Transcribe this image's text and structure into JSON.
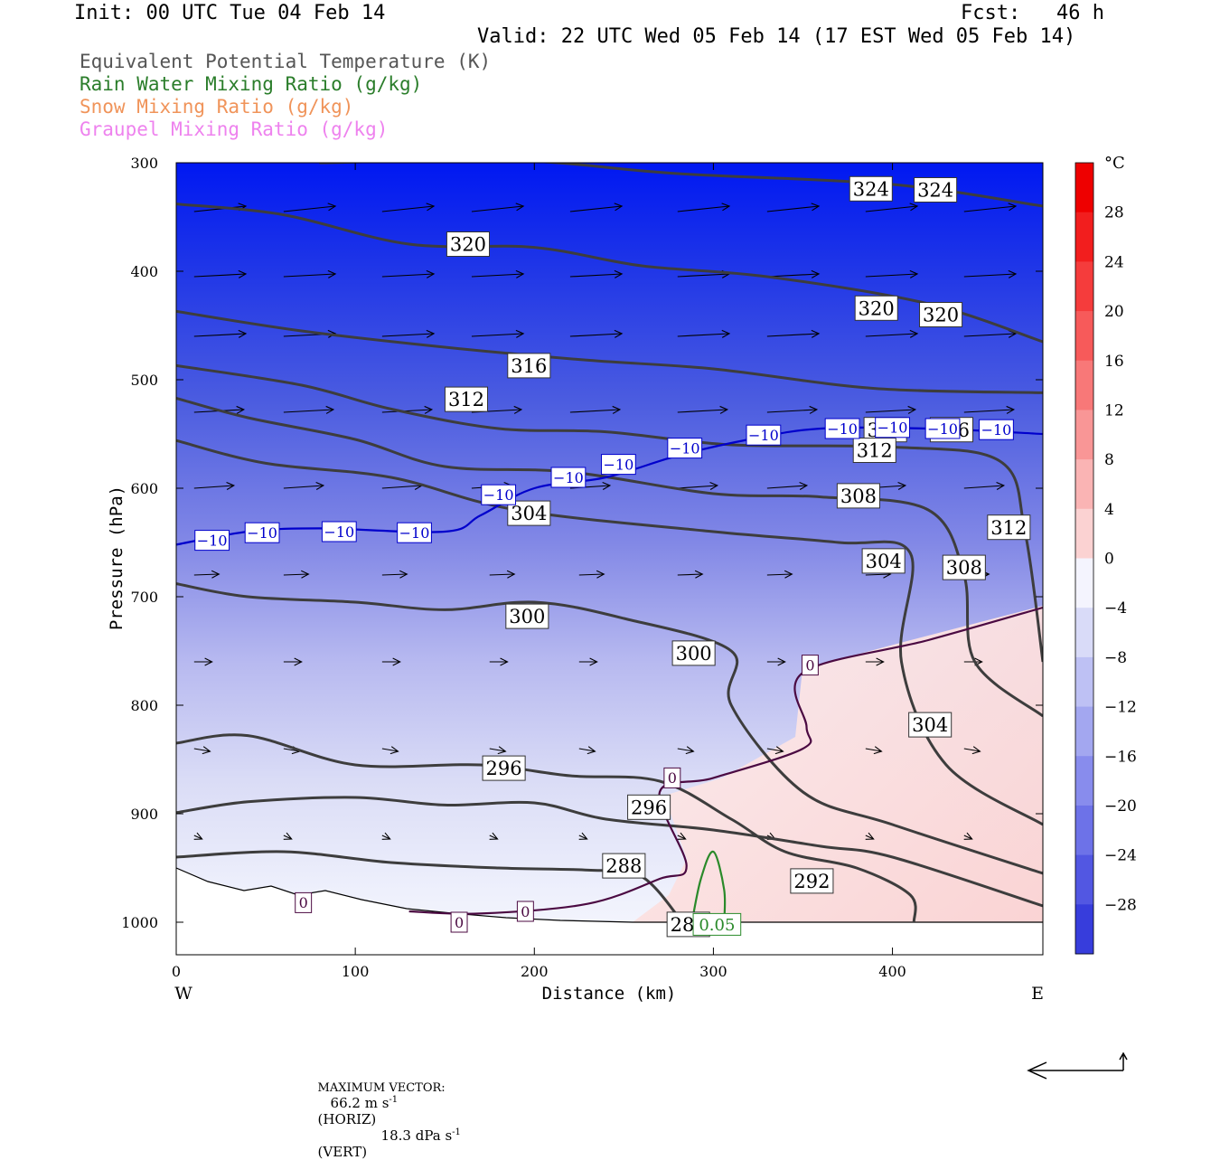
{
  "header": {
    "init": "Init: 00 UTC Tue 04 Feb 14",
    "fcst": "Fcst:   46 h",
    "valid": "Valid: 22 UTC Wed 05 Feb 14 (17 EST Wed 05 Feb 14)"
  },
  "fields": [
    {
      "label": "Equivalent Potential Temperature (K)",
      "color": "#555555"
    },
    {
      "label": "Rain Water Mixing Ratio (g/kg)",
      "color": "#2a7d2a"
    },
    {
      "label": "Snow Mixing Ratio (g/kg)",
      "color": "#f0945a"
    },
    {
      "label": "Graupel Mixing Ratio (g/kg)",
      "color": "#ee82ee"
    }
  ],
  "chart_data": {
    "type": "contour",
    "xlabel": "Distance (km)",
    "ylabel": "Pressure (hPa)",
    "xlim": [
      0,
      484
    ],
    "ylim": [
      1030,
      300
    ],
    "x_ticks": [
      0,
      100,
      200,
      300,
      400
    ],
    "y_ticks": [
      300,
      400,
      500,
      600,
      700,
      800,
      900,
      1000
    ],
    "west_label": "W",
    "east_label": "E",
    "colorbar": {
      "unit": "°C",
      "labels": [
        "28",
        "24",
        "20",
        "16",
        "12",
        "8",
        "4",
        "0",
        "−4",
        "−8",
        "−12",
        "−16",
        "−20",
        "−24",
        "−28"
      ]
    },
    "theta_e_contours": [
      {
        "level": 324,
        "label": "324",
        "points": [
          [
            80,
            300
          ],
          [
            190,
            298
          ],
          [
            280,
            310
          ],
          [
            400,
            320
          ],
          [
            484,
            340
          ]
        ],
        "labels_at": [
          [
            388,
            324
          ],
          [
            424,
            325
          ]
        ]
      },
      {
        "level": 320,
        "label": "320",
        "points": [
          [
            0,
            338
          ],
          [
            60,
            348
          ],
          [
            130,
            375
          ],
          [
            200,
            378
          ],
          [
            260,
            395
          ],
          [
            330,
            405
          ],
          [
            420,
            430
          ],
          [
            484,
            465
          ]
        ],
        "labels_at": [
          [
            163,
            375
          ],
          [
            391,
            434
          ],
          [
            427,
            440
          ]
        ]
      },
      {
        "level": 316,
        "label": "316",
        "points": [
          [
            0,
            437
          ],
          [
            70,
            455
          ],
          [
            150,
            470
          ],
          [
            230,
            482
          ],
          [
            300,
            490
          ],
          [
            390,
            508
          ],
          [
            484,
            512
          ]
        ],
        "labels_at": [
          [
            197,
            487
          ],
          [
            396,
            546
          ],
          [
            433,
            546
          ]
        ]
      },
      {
        "level": 312,
        "label": "312",
        "points": [
          [
            0,
            487
          ],
          [
            70,
            505
          ],
          [
            120,
            527
          ],
          [
            180,
            545
          ],
          [
            240,
            548
          ],
          [
            310,
            560
          ],
          [
            400,
            562
          ],
          [
            460,
            575
          ],
          [
            474,
            640
          ],
          [
            484,
            760
          ]
        ],
        "labels_at": [
          [
            162,
            518
          ],
          [
            390,
            565
          ],
          [
            465,
            636
          ]
        ]
      },
      {
        "level": 308,
        "label": "308",
        "points": [
          [
            0,
            517
          ],
          [
            40,
            535
          ],
          [
            100,
            555
          ],
          [
            150,
            580
          ],
          [
            220,
            585
          ],
          [
            300,
            605
          ],
          [
            360,
            608
          ],
          [
            420,
            620
          ],
          [
            440,
            680
          ],
          [
            446,
            760
          ],
          [
            484,
            810
          ]
        ],
        "labels_at": [
          [
            381,
            607
          ],
          [
            440,
            673
          ]
        ]
      },
      {
        "level": 304,
        "label": "304",
        "points": [
          [
            0,
            556
          ],
          [
            50,
            577
          ],
          [
            120,
            590
          ],
          [
            190,
            620
          ],
          [
            300,
            640
          ],
          [
            370,
            650
          ],
          [
            410,
            660
          ],
          [
            405,
            760
          ],
          [
            430,
            855
          ],
          [
            484,
            910
          ]
        ],
        "labels_at": [
          [
            197,
            623
          ],
          [
            395,
            667
          ],
          [
            421,
            818
          ]
        ]
      },
      {
        "level": 300,
        "label": "300",
        "points": [
          [
            0,
            688
          ],
          [
            40,
            700
          ],
          [
            100,
            705
          ],
          [
            150,
            712
          ],
          [
            200,
            705
          ],
          [
            250,
            720
          ],
          [
            310,
            750
          ],
          [
            310,
            800
          ],
          [
            350,
            880
          ],
          [
            400,
            910
          ],
          [
            484,
            955
          ]
        ],
        "labels_at": [
          [
            196,
            718
          ],
          [
            289,
            752
          ]
        ]
      },
      {
        "level": 296,
        "label": "296",
        "points": [
          [
            0,
            835
          ],
          [
            40,
            828
          ],
          [
            100,
            855
          ],
          [
            170,
            855
          ],
          [
            220,
            865
          ],
          [
            270,
            870
          ],
          [
            310,
            905
          ],
          [
            340,
            935
          ],
          [
            380,
            950
          ],
          [
            410,
            975
          ],
          [
            412,
            1000
          ]
        ],
        "labels_at": [
          [
            183,
            858
          ],
          [
            264,
            894
          ]
        ]
      },
      {
        "level": 292,
        "label": "292",
        "points": [
          [
            0,
            899
          ],
          [
            40,
            889
          ],
          [
            100,
            885
          ],
          [
            150,
            892
          ],
          [
            200,
            890
          ],
          [
            240,
            905
          ],
          [
            300,
            915
          ],
          [
            360,
            930
          ],
          [
            400,
            940
          ],
          [
            484,
            985
          ]
        ],
        "labels_at": [
          [
            355,
            962
          ]
        ]
      },
      {
        "level": 288,
        "label": "288",
        "points": [
          [
            0,
            940
          ],
          [
            60,
            935
          ],
          [
            120,
            945
          ],
          [
            180,
            950
          ],
          [
            230,
            952
          ],
          [
            260,
            958
          ],
          [
            284,
            1003
          ]
        ],
        "labels_at": [
          [
            250,
            948
          ],
          [
            286,
            1002
          ]
        ]
      }
    ],
    "temperature_contours": [
      {
        "level": -10,
        "color": "#0000cc",
        "points": [
          [
            0,
            652
          ],
          [
            40,
            640
          ],
          [
            80,
            637
          ],
          [
            150,
            640
          ],
          [
            170,
            625
          ],
          [
            200,
            600
          ],
          [
            240,
            590
          ],
          [
            280,
            570
          ],
          [
            320,
            555
          ],
          [
            360,
            545
          ],
          [
            420,
            545
          ],
          [
            484,
            550
          ]
        ],
        "labels_at": [
          [
            20,
            648
          ],
          [
            48,
            641
          ],
          [
            91,
            640
          ],
          [
            133,
            641
          ],
          [
            180,
            606
          ],
          [
            219,
            590
          ],
          [
            247,
            578
          ],
          [
            284,
            563
          ],
          [
            328,
            551
          ],
          [
            372,
            545
          ],
          [
            400,
            544
          ],
          [
            428,
            545
          ],
          [
            458,
            546
          ]
        ]
      },
      {
        "level": 0,
        "color": "#4b0a42",
        "points": [
          [
            130,
            990
          ],
          [
            170,
            992
          ],
          [
            230,
            983
          ],
          [
            270,
            960
          ],
          [
            285,
            948
          ],
          [
            270,
            880
          ],
          [
            300,
            867
          ],
          [
            350,
            840
          ],
          [
            352,
            820
          ],
          [
            350,
            770
          ],
          [
            420,
            740
          ],
          [
            484,
            710
          ]
        ],
        "labels_at": [
          [
            71,
            982
          ],
          [
            158,
            1000
          ],
          [
            195,
            990
          ],
          [
            354,
            763
          ],
          [
            277,
            867
          ]
        ]
      }
    ],
    "rain_contours": [
      {
        "level": 0.05,
        "label": "0.05",
        "points": [
          [
            288,
            1000
          ],
          [
            293,
            960
          ],
          [
            300,
            935
          ],
          [
            306,
            970
          ],
          [
            306,
            1000
          ]
        ],
        "labels_at": [
          [
            302,
            1002
          ]
        ]
      }
    ],
    "footer": {
      "maximum_vector_label": "MAXIMUM VECTOR:",
      "horiz_value": "66.2 m s",
      "horiz_unit_exp": "-1",
      "horiz_label": "(HORIZ)",
      "vert_value": "18.3 dPa s",
      "vert_unit_exp": "-1",
      "vert_label": "(VERT)"
    }
  }
}
